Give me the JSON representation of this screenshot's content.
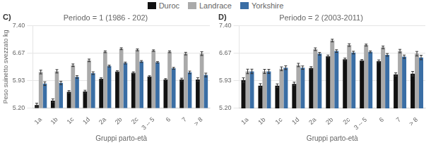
{
  "chart_data": [
    {
      "type": "bar",
      "title": "Periodo = 1 (1986 - 202)",
      "annotations": [
        "C)"
      ],
      "x_label": "Gruppi parto-età",
      "y_label": "Peso suinetto svezzato kg",
      "categories": [
        "1a",
        "1b",
        "1c",
        "1d",
        "2a",
        "2b",
        "2c",
        "3 -- 5",
        "6",
        "7",
        "> 8"
      ],
      "series": [
        {
          "name": "Duroc",
          "color": "#111111",
          "values": [
            5.28,
            5.4,
            5.63,
            5.64,
            5.98,
            6.17,
            6.14,
            6.04,
            5.96,
            5.96,
            5.96
          ],
          "errors": [
            0.05,
            0.045,
            0.035,
            0.035,
            0.025,
            0.025,
            0.025,
            0.02,
            0.025,
            0.035,
            0.05
          ]
        },
        {
          "name": "Landrace",
          "color": "#aaaaaa",
          "values": [
            6.16,
            6.18,
            6.34,
            6.47,
            6.7,
            6.78,
            6.75,
            6.73,
            6.7,
            6.65,
            6.65
          ],
          "errors": [
            0.05,
            0.045,
            0.035,
            0.035,
            0.025,
            0.025,
            0.025,
            0.02,
            0.025,
            0.035,
            0.05
          ]
        },
        {
          "name": "Yorkshire",
          "color": "#3a6ea5",
          "values": [
            5.85,
            5.87,
            6.03,
            6.13,
            6.32,
            6.4,
            6.44,
            6.42,
            6.26,
            6.15,
            6.08
          ],
          "errors": [
            0.05,
            0.045,
            0.035,
            0.035,
            0.025,
            0.025,
            0.025,
            0.02,
            0.025,
            0.035,
            0.05
          ]
        }
      ],
      "ylim": [
        5.2,
        7.4
      ],
      "yticks": [
        {
          "value": 5.2,
          "label": "5.20"
        },
        5.93,
        6.67,
        {
          "value": 7.4,
          "label": "7.40"
        }
      ],
      "grid": true,
      "legend": "top"
    },
    {
      "type": "bar",
      "title": "Periodo = 2 (2003-2011)",
      "annotations": [
        "D)"
      ],
      "x_label": "Gruppi parto-età",
      "categories": [
        "1a",
        "1b",
        "1c",
        "1d",
        "2a",
        "2b",
        "2c",
        "3 -- 5",
        "6",
        "7",
        "> 8"
      ],
      "series": [
        {
          "name": "Duroc",
          "color": "#111111",
          "values": [
            5.95,
            5.8,
            5.8,
            5.85,
            6.27,
            6.58,
            6.5,
            6.47,
            6.45,
            6.1,
            6.12
          ],
          "errors": [
            0.06,
            0.055,
            0.05,
            0.045,
            0.035,
            0.035,
            0.035,
            0.025,
            0.035,
            0.045,
            0.06
          ]
        },
        {
          "name": "Landrace",
          "color": "#aaaaaa",
          "values": [
            6.18,
            6.18,
            6.25,
            6.35,
            6.77,
            7.0,
            6.88,
            6.88,
            6.82,
            6.72,
            6.65
          ],
          "errors": [
            0.06,
            0.055,
            0.05,
            0.045,
            0.035,
            0.035,
            0.035,
            0.025,
            0.035,
            0.045,
            0.06
          ]
        },
        {
          "name": "Yorkshire",
          "color": "#3a6ea5",
          "values": [
            6.18,
            6.18,
            6.28,
            6.28,
            6.65,
            6.72,
            6.68,
            6.7,
            6.62,
            6.57,
            6.55
          ],
          "errors": [
            0.06,
            0.055,
            0.05,
            0.045,
            0.035,
            0.035,
            0.035,
            0.025,
            0.035,
            0.045,
            0.06
          ]
        }
      ],
      "ylim": [
        5.2,
        7.4
      ],
      "yticks": [
        {
          "value": 5.2,
          "label": "5.20"
        },
        5.93,
        6.67,
        {
          "value": 7.4,
          "label": "7.40"
        }
      ],
      "grid": true
    }
  ]
}
